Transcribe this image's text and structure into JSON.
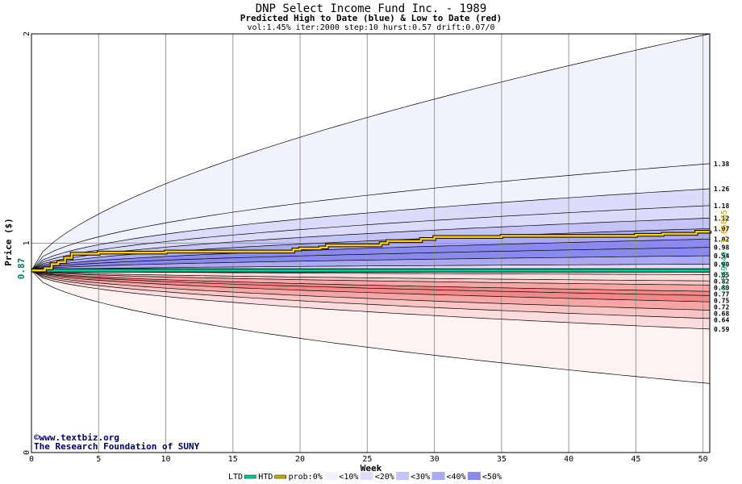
{
  "chart_data": {
    "type": "area",
    "title": "DNP Select Income Fund Inc. - 1989",
    "subtitle": "Predicted High to Date (blue) &  Low to Date (red)",
    "params": "vol:1.45% iter:2000 step:10 hurst:0.57 drift:0.07/0",
    "xlabel": "Week",
    "ylabel": "Price ($)",
    "xlim": [
      0,
      50.5
    ],
    "ylim": [
      0,
      2
    ],
    "x_ticks": [
      0,
      5,
      10,
      15,
      20,
      25,
      30,
      35,
      40,
      45,
      50
    ],
    "y_ticks": [
      0,
      1,
      2
    ],
    "grid": "vertical lines every 5 weeks, horizontal at 0, 1, 2",
    "current_price": 0.87,
    "current_price_label": "0.87",
    "htd_value_label": "1.05865",
    "ltd_value_label": "0.869649",
    "high_quantiles_at_end": [
      1.38,
      1.26,
      1.18,
      1.12,
      1.07,
      1.02,
      0.98,
      0.94,
      0.9
    ],
    "high_quantile_labels": [
      "1.38",
      "1.26",
      "1.18",
      "1.12",
      "1.07",
      "1.02",
      "0.98",
      "0.94",
      "0.90"
    ],
    "low_quantiles_at_end": [
      0.85,
      0.82,
      0.8,
      0.77,
      0.75,
      0.72,
      0.68,
      0.64,
      0.59
    ],
    "low_quantile_labels": [
      "0.85",
      "0.82",
      "0.80",
      "0.77",
      "0.75",
      "0.72",
      "0.68",
      "0.64",
      "0.59"
    ],
    "outer_high_extreme_at_end": 2.0,
    "outer_low_extreme_at_end": 0.33,
    "htd_series": {
      "name": "HTD",
      "x": [
        0,
        1,
        1.5,
        2,
        2.5,
        3,
        5,
        10,
        15,
        19.5,
        20,
        21.5,
        22,
        26,
        26.5,
        29,
        30,
        35,
        40,
        45,
        47,
        49.5,
        50.5
      ],
      "y": [
        0.87,
        0.88,
        0.9,
        0.91,
        0.93,
        0.95,
        0.955,
        0.96,
        0.96,
        0.97,
        0.975,
        0.98,
        0.99,
        1.0,
        1.01,
        1.02,
        1.03,
        1.035,
        1.035,
        1.04,
        1.045,
        1.055,
        1.06
      ]
    },
    "ltd_series": {
      "name": "LTD",
      "x": [
        0,
        50.5
      ],
      "y": [
        0.87,
        0.87
      ]
    },
    "legend": [
      {
        "label": "LTD",
        "color": "#00cc99"
      },
      {
        "label": "HTD",
        "color": "#ccaa00"
      },
      {
        "label": "prob:0%",
        "color": null
      },
      {
        "label": "<10%",
        "color": "#f2f2fe"
      },
      {
        "label": "<20%",
        "color": "#dcdcfa"
      },
      {
        "label": "<30%",
        "color": "#c4c4f6"
      },
      {
        "label": "<40%",
        "color": "#aaaaf2"
      },
      {
        "label": "<50%",
        "color": "#8a8aee"
      }
    ],
    "legend_placement": "bottom-center"
  },
  "colors": {
    "blue_bands": [
      "#f2f2fe",
      "#dcdcfa",
      "#c4c4f6",
      "#aaaaf2",
      "#8a8aee"
    ],
    "red_bands": [
      "#fef2f2",
      "#fcdcdc",
      "#f9c4c4",
      "#f7a6a6",
      "#f48888"
    ],
    "htd_line": "#ffcc00",
    "ltd_line": "#00cc99",
    "credit_text": "#000066"
  },
  "credit": {
    "line1": "©www.textbiz.org",
    "line2": "The Research Foundation of SUNY"
  }
}
